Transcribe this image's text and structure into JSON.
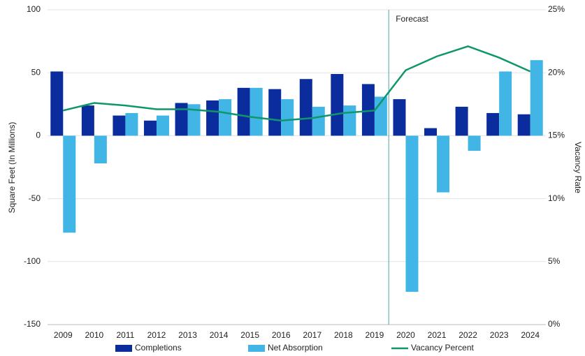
{
  "chart_data": {
    "type": "bar-line",
    "categories": [
      "2009",
      "2010",
      "2011",
      "2012",
      "2013",
      "2014",
      "2015",
      "2016",
      "2017",
      "2018",
      "2019",
      "2020",
      "2021",
      "2022",
      "2023",
      "2024"
    ],
    "series": [
      {
        "name": "Completions",
        "type": "bar",
        "color": "#0b2c9c",
        "values": [
          51,
          24,
          16,
          12,
          26,
          28,
          38,
          37,
          45,
          49,
          41,
          29,
          6,
          23,
          18,
          17
        ]
      },
      {
        "name": "Net Absorption",
        "type": "bar",
        "color": "#41b6e6",
        "values": [
          -77,
          -22,
          18,
          16,
          25,
          29,
          38,
          29,
          23,
          24,
          31,
          -124,
          -45,
          -12,
          51,
          60
        ]
      },
      {
        "name": "Vacancy Percent",
        "type": "line",
        "axis": "y2",
        "color": "#10966b",
        "values": [
          17.0,
          17.6,
          17.4,
          17.1,
          17.1,
          16.9,
          16.5,
          16.2,
          16.4,
          16.8,
          17.0,
          20.2,
          21.3,
          22.1,
          21.2,
          20.1
        ]
      }
    ],
    "ylabel": "Square Feet (In Millions)",
    "y2label": "Vacancy Rate",
    "ylim": [
      -150,
      100
    ],
    "yticks": [
      100,
      50,
      0,
      -50,
      -100,
      -150
    ],
    "y2lim": [
      0,
      25
    ],
    "y2ticks": [
      {
        "value": 25,
        "label": "25%"
      },
      {
        "value": 20,
        "label": "20%"
      },
      {
        "value": 15,
        "label": "15%"
      },
      {
        "value": 10,
        "label": "10%"
      },
      {
        "value": 5,
        "label": "5%"
      },
      {
        "value": 0,
        "label": "0%"
      }
    ],
    "grid": true,
    "legend": "bottom",
    "annotation": {
      "text": "Forecast",
      "at": "2020"
    }
  }
}
